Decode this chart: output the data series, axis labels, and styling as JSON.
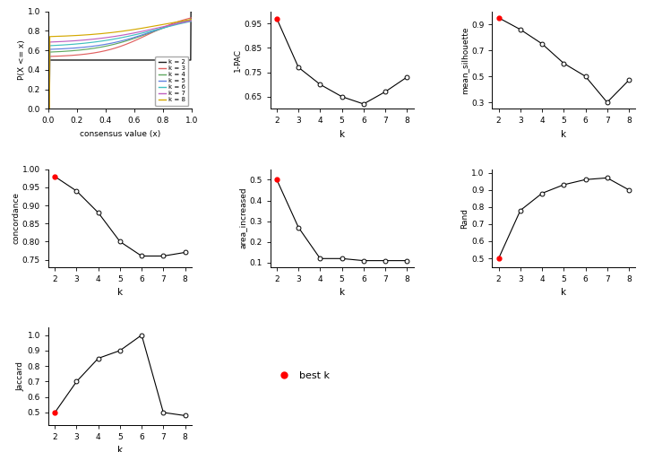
{
  "k_vals": [
    2,
    3,
    4,
    5,
    6,
    7,
    8
  ],
  "pac_1": [
    0.97,
    0.77,
    0.7,
    0.65,
    0.62,
    0.67,
    0.73
  ],
  "mean_silhouette": [
    0.95,
    0.86,
    0.75,
    0.6,
    0.5,
    0.3,
    0.47
  ],
  "concordance": [
    0.98,
    0.94,
    0.88,
    0.8,
    0.76,
    0.76,
    0.77
  ],
  "area_increased": [
    0.5,
    0.27,
    0.12,
    0.12,
    0.11,
    0.11,
    0.11
  ],
  "rand_vals": [
    0.5,
    0.78,
    0.88,
    0.93,
    0.96,
    0.97,
    0.9
  ],
  "jaccard": [
    0.5,
    0.7,
    0.85,
    0.9,
    1.0,
    0.5,
    0.48
  ],
  "best_k": 2,
  "cdf_colors": [
    "#1a1a1a",
    "#e06060",
    "#60a860",
    "#6080e0",
    "#40c0c0",
    "#c060c0",
    "#d4a800"
  ],
  "cdf_labels": [
    "k = 2",
    "k = 3",
    "k = 4",
    "k = 5",
    "k = 6",
    "k = 7",
    "k = 8"
  ]
}
